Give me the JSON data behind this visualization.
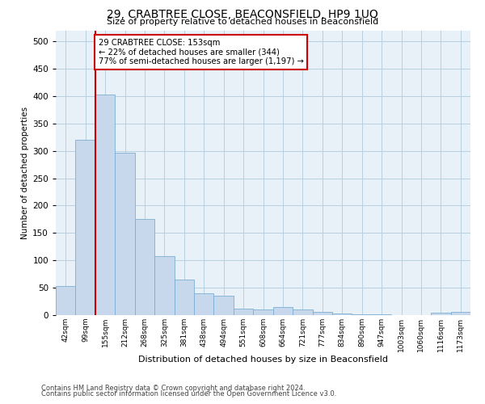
{
  "title": "29, CRABTREE CLOSE, BEACONSFIELD, HP9 1UQ",
  "subtitle": "Size of property relative to detached houses in Beaconsfield",
  "xlabel": "Distribution of detached houses by size in Beaconsfield",
  "ylabel": "Number of detached properties",
  "categories": [
    "42sqm",
    "99sqm",
    "155sqm",
    "212sqm",
    "268sqm",
    "325sqm",
    "381sqm",
    "438sqm",
    "494sqm",
    "551sqm",
    "608sqm",
    "664sqm",
    "721sqm",
    "777sqm",
    "834sqm",
    "890sqm",
    "947sqm",
    "1003sqm",
    "1060sqm",
    "1116sqm",
    "1173sqm"
  ],
  "values": [
    53,
    320,
    403,
    297,
    176,
    108,
    65,
    40,
    36,
    12,
    10,
    15,
    10,
    6,
    3,
    1,
    1,
    0,
    0,
    5,
    6
  ],
  "bar_color": "#c8d8ec",
  "bar_edge_color": "#7bafd4",
  "grid_color": "#b8cfe0",
  "annotation_text": "29 CRABTREE CLOSE: 153sqm\n← 22% of detached houses are smaller (344)\n77% of semi-detached houses are larger (1,197) →",
  "annotation_box_edge_color": "#cc0000",
  "vline_color": "#cc0000",
  "ylim": [
    0,
    520
  ],
  "yticks": [
    0,
    50,
    100,
    150,
    200,
    250,
    300,
    350,
    400,
    450,
    500
  ],
  "footnote1": "Contains HM Land Registry data © Crown copyright and database right 2024.",
  "footnote2": "Contains public sector information licensed under the Open Government Licence v3.0.",
  "background_color": "#ffffff",
  "plot_bg_color": "#e8f0f8"
}
